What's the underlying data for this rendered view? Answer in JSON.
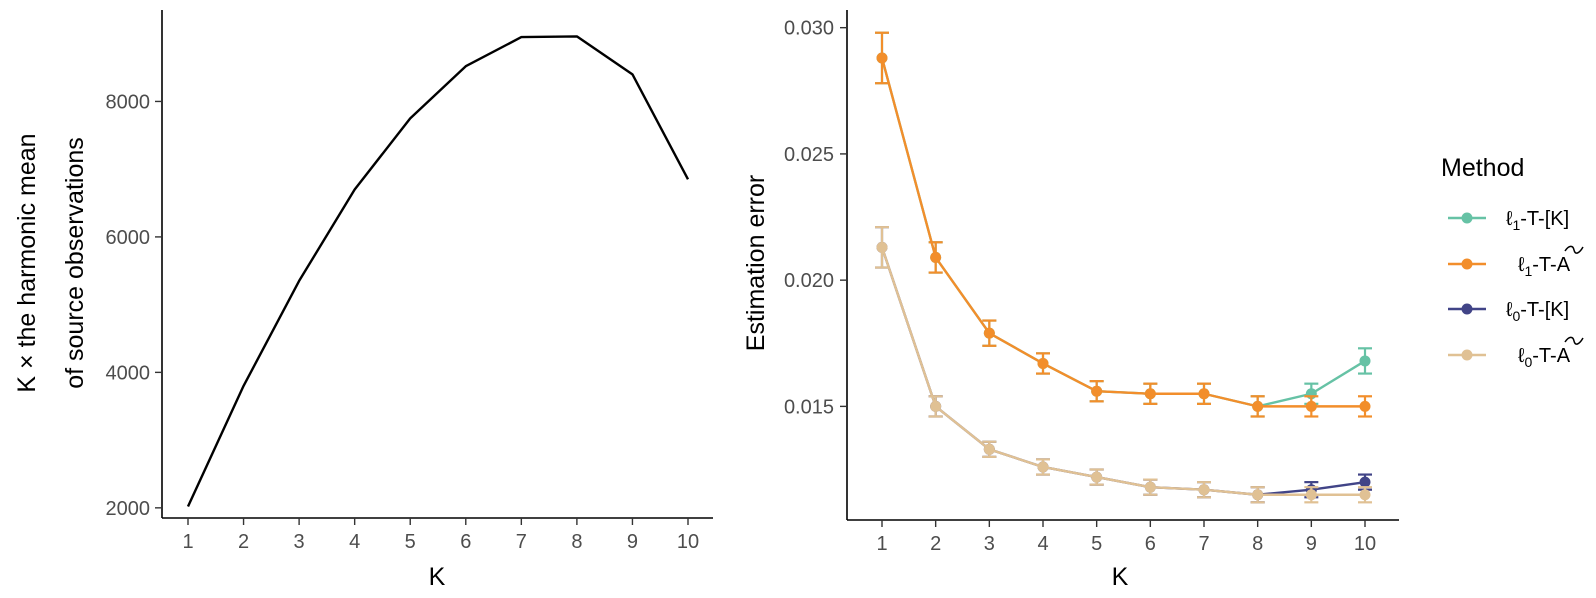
{
  "chart_data": [
    {
      "type": "line",
      "title": "",
      "xlabel": "K",
      "ylabel_line1": "K × the harmonic mean",
      "ylabel_line2": "of source observations",
      "x": [
        1,
        2,
        3,
        4,
        5,
        6,
        7,
        8,
        9,
        10
      ],
      "xticks": [
        "1",
        "2",
        "3",
        "4",
        "5",
        "6",
        "7",
        "8",
        "9",
        "10"
      ],
      "yticks": [
        "2000",
        "4000",
        "6000",
        "8000"
      ],
      "ylim": [
        1850,
        9350
      ],
      "grid": false,
      "series": [
        {
          "color": "#000000",
          "values": [
            2020,
            3800,
            5350,
            6700,
            7750,
            8520,
            8950,
            8960,
            8400,
            6850
          ]
        }
      ]
    },
    {
      "type": "line",
      "title": "",
      "xlabel": "K",
      "ylabel": "Estimation error",
      "x": [
        1,
        2,
        3,
        4,
        5,
        6,
        7,
        8,
        9,
        10
      ],
      "xticks": [
        "1",
        "2",
        "3",
        "4",
        "5",
        "6",
        "7",
        "8",
        "9",
        "10"
      ],
      "yticks": [
        "0.015",
        "0.020",
        "0.025",
        "0.030"
      ],
      "ylim": [
        0.0105,
        0.0307
      ],
      "grid": false,
      "legend": {
        "title": "Method",
        "placement": "right",
        "entries": [
          {
            "prefix": "ℓ",
            "sub": "1",
            "suffix": "-T-[K]",
            "tilde": false
          },
          {
            "prefix": "ℓ",
            "sub": "1",
            "suffix": "-T-A",
            "tilde": true
          },
          {
            "prefix": "ℓ",
            "sub": "0",
            "suffix": "-T-[K]",
            "tilde": false
          },
          {
            "prefix": "ℓ",
            "sub": "0",
            "suffix": "-T-A",
            "tilde": true
          }
        ]
      },
      "series": [
        {
          "name": "ℓ1-T-[K]",
          "color": "#66c2a5",
          "values": [
            0.0288,
            0.0209,
            0.0179,
            0.0167,
            0.0156,
            0.0155,
            0.0155,
            0.015,
            0.0155,
            0.0168
          ],
          "err": [
            0.001,
            0.0006,
            0.0005,
            0.0004,
            0.0004,
            0.0004,
            0.0004,
            0.0004,
            0.0004,
            0.0005
          ]
        },
        {
          "name": "ℓ1-T-Ã",
          "color": "#f28e2b",
          "values": [
            0.0288,
            0.0209,
            0.0179,
            0.0167,
            0.0156,
            0.0155,
            0.0155,
            0.015,
            0.015,
            0.015
          ],
          "err": [
            0.001,
            0.0006,
            0.0005,
            0.0004,
            0.0004,
            0.0004,
            0.0004,
            0.0004,
            0.0004,
            0.0004
          ]
        },
        {
          "name": "ℓ0-T-[K]",
          "color": "#414487",
          "values": [
            0.0213,
            0.015,
            0.0133,
            0.0126,
            0.0122,
            0.0118,
            0.0117,
            0.0115,
            0.0117,
            0.012
          ],
          "err": [
            0.0008,
            0.0004,
            0.0003,
            0.0003,
            0.0003,
            0.0003,
            0.0003,
            0.0003,
            0.0003,
            0.0003
          ]
        },
        {
          "name": "ℓ0-T-Ã",
          "color": "#e0c194",
          "values": [
            0.0213,
            0.015,
            0.0133,
            0.0126,
            0.0122,
            0.0118,
            0.0117,
            0.0115,
            0.0115,
            0.0115
          ],
          "err": [
            0.0008,
            0.0004,
            0.0003,
            0.0003,
            0.0003,
            0.0003,
            0.0003,
            0.0003,
            0.0003,
            0.0003
          ]
        }
      ]
    }
  ]
}
